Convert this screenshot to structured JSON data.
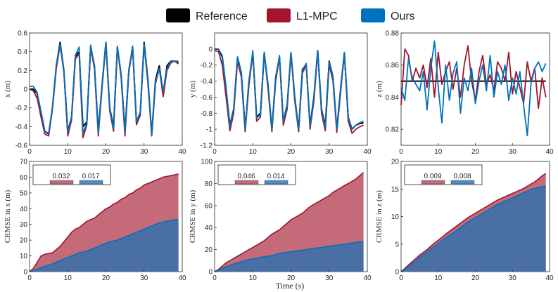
{
  "legend": {
    "items": [
      {
        "label": "Reference",
        "color": "#000000"
      },
      {
        "label": "L1-MPC",
        "color": "#a2142f"
      },
      {
        "label": "Ours",
        "color": "#0072bd"
      }
    ]
  },
  "shared_xlabel": "Time (s)",
  "chart_data": [
    {
      "type": "line",
      "panel": "top-left",
      "ylabel": "x (m)",
      "xlim": [
        0,
        40
      ],
      "ylim": [
        -0.6,
        0.6
      ],
      "xticks": [
        0,
        10,
        20,
        30,
        40
      ],
      "yticks": [
        -0.6,
        -0.4,
        -0.2,
        0,
        0.2,
        0.4,
        0.6
      ],
      "ytick_labels": [
        "-0.6",
        "-0.4",
        "-0.2",
        "0",
        "0.2",
        "0.4",
        "0.6"
      ],
      "x": [
        0,
        1,
        2,
        3,
        4,
        5,
        6,
        7,
        8,
        9,
        10,
        11,
        12,
        13,
        14,
        15,
        16,
        17,
        18,
        19,
        20,
        21,
        22,
        23,
        24,
        25,
        26,
        27,
        28,
        29,
        30,
        31,
        32,
        33,
        34,
        35,
        36,
        37,
        38,
        39
      ],
      "series": [
        {
          "name": "Reference",
          "color": "#000000",
          "values": [
            0,
            0,
            -0.05,
            -0.25,
            -0.45,
            -0.48,
            -0.2,
            0.25,
            0.5,
            0.2,
            -0.45,
            -0.3,
            0.35,
            0.4,
            -0.4,
            -0.35,
            0.45,
            0.25,
            -0.45,
            0.05,
            0.5,
            -0.2,
            -0.4,
            0.45,
            0.15,
            -0.45,
            0.2,
            0.45,
            -0.35,
            -0.25,
            0.5,
            0.1,
            -0.48,
            0.1,
            0.25,
            -0.05,
            0.25,
            0.3,
            0.3,
            0.28
          ]
        },
        {
          "name": "L1-MPC",
          "color": "#a2142f",
          "values": [
            0,
            -0.02,
            -0.1,
            -0.3,
            -0.48,
            -0.5,
            -0.22,
            0.22,
            0.47,
            0.18,
            -0.5,
            -0.33,
            0.32,
            0.38,
            -0.52,
            -0.38,
            0.44,
            0.22,
            -0.5,
            0.02,
            0.48,
            -0.23,
            -0.45,
            0.44,
            0.12,
            -0.5,
            0.18,
            0.44,
            -0.38,
            -0.28,
            0.47,
            0.06,
            -0.5,
            0.06,
            0.22,
            -0.08,
            0.2,
            0.28,
            0.3,
            0.27
          ]
        },
        {
          "name": "Ours",
          "color": "#0072bd",
          "values": [
            0.03,
            0.03,
            -0.04,
            -0.24,
            -0.45,
            -0.47,
            -0.2,
            0.25,
            0.48,
            0.2,
            -0.46,
            -0.3,
            0.36,
            0.45,
            -0.47,
            -0.36,
            0.47,
            0.25,
            -0.47,
            0.05,
            0.5,
            -0.2,
            -0.42,
            0.46,
            0.15,
            -0.46,
            0.2,
            0.46,
            -0.35,
            -0.25,
            0.48,
            0.08,
            -0.48,
            0.08,
            0.22,
            -0.02,
            0.22,
            0.3,
            0.3,
            0.3
          ]
        }
      ]
    },
    {
      "type": "line",
      "panel": "top-middle",
      "ylabel": "y (m)",
      "xlim": [
        0,
        40
      ],
      "ylim": [
        -1.2,
        0.2
      ],
      "xticks": [
        0,
        10,
        20,
        30,
        40
      ],
      "yticks": [
        -1.2,
        -1,
        -0.8,
        -0.6,
        -0.4,
        -0.2,
        0
      ],
      "ytick_labels": [
        "-1.2",
        "-1",
        "-0.8",
        "-0.6",
        "-0.4",
        "-0.2",
        "0"
      ],
      "x": [
        0,
        1,
        2,
        3,
        4,
        5,
        6,
        7,
        8,
        9,
        10,
        11,
        12,
        13,
        14,
        15,
        16,
        17,
        18,
        19,
        20,
        21,
        22,
        23,
        24,
        25,
        26,
        27,
        28,
        29,
        30,
        31,
        32,
        33,
        34,
        35,
        36,
        37,
        38,
        39
      ],
      "series": [
        {
          "name": "Reference",
          "color": "#000000",
          "values": [
            0,
            0,
            -0.1,
            -0.5,
            -0.95,
            -0.75,
            -0.1,
            -0.3,
            -1.0,
            -0.4,
            -0.05,
            -0.85,
            -0.8,
            -0.05,
            -0.45,
            -1.0,
            -0.35,
            -0.1,
            -0.9,
            -0.7,
            -0.05,
            -0.6,
            -1.0,
            -0.25,
            -0.2,
            -0.95,
            -0.6,
            -0.02,
            -0.75,
            -0.95,
            -0.15,
            -0.35,
            -1.0,
            -0.5,
            -0.05,
            -0.85,
            -1.0,
            -0.95,
            -0.93,
            -0.92
          ]
        },
        {
          "name": "L1-MPC",
          "color": "#a2142f",
          "values": [
            -0.02,
            -0.03,
            -0.2,
            -0.6,
            -1.02,
            -0.8,
            -0.15,
            -0.35,
            -1.03,
            -0.45,
            -0.05,
            -0.9,
            -0.85,
            -0.05,
            -0.5,
            -1.03,
            -0.4,
            -0.1,
            -0.95,
            -0.75,
            -0.05,
            -0.65,
            -1.03,
            -0.3,
            -0.2,
            -1.0,
            -0.65,
            -0.03,
            -0.8,
            -1.02,
            -0.2,
            -0.4,
            -1.04,
            -0.55,
            -0.05,
            -0.9,
            -1.05,
            -1.0,
            -0.97,
            -0.95
          ]
        },
        {
          "name": "Ours",
          "color": "#0072bd",
          "values": [
            0,
            0,
            -0.08,
            -0.48,
            -0.97,
            -0.76,
            -0.1,
            -0.3,
            -1.0,
            -0.4,
            -0.02,
            -0.86,
            -0.82,
            -0.04,
            -0.46,
            -1.0,
            -0.36,
            -0.08,
            -0.9,
            -0.72,
            -0.04,
            -0.6,
            -1.0,
            -0.26,
            -0.18,
            -0.96,
            -0.62,
            -0.02,
            -0.76,
            -0.97,
            -0.16,
            -0.36,
            -1.0,
            -0.5,
            -0.04,
            -0.86,
            -1.0,
            -0.95,
            -0.92,
            -0.9
          ]
        }
      ]
    },
    {
      "type": "line",
      "panel": "top-right",
      "ylabel": "z (m)",
      "xlim": [
        0,
        40
      ],
      "ylim": [
        0.81,
        0.88
      ],
      "xticks": [
        0,
        10,
        20,
        30,
        40
      ],
      "yticks": [
        0.82,
        0.84,
        0.86,
        0.88
      ],
      "ytick_labels": [
        "0.82",
        "0.84",
        "0.86",
        "0.88"
      ],
      "x": [
        0,
        1,
        2,
        3,
        4,
        5,
        6,
        7,
        8,
        9,
        10,
        11,
        12,
        13,
        14,
        15,
        16,
        17,
        18,
        19,
        20,
        21,
        22,
        23,
        24,
        25,
        26,
        27,
        28,
        29,
        30,
        31,
        32,
        33,
        34,
        35,
        36,
        37,
        38,
        39
      ],
      "series": [
        {
          "name": "Reference",
          "color": "#000000",
          "values": [
            0.85,
            0.85,
            0.85,
            0.85,
            0.85,
            0.85,
            0.85,
            0.85,
            0.85,
            0.85,
            0.85,
            0.85,
            0.85,
            0.85,
            0.85,
            0.85,
            0.85,
            0.85,
            0.85,
            0.85,
            0.85,
            0.85,
            0.85,
            0.85,
            0.85,
            0.85,
            0.85,
            0.85,
            0.85,
            0.85,
            0.85,
            0.85,
            0.85,
            0.85,
            0.85,
            0.85,
            0.85,
            0.85,
            0.85,
            0.85
          ]
        },
        {
          "name": "L1-MPC",
          "color": "#a2142f",
          "values": [
            0.835,
            0.87,
            0.866,
            0.85,
            0.858,
            0.852,
            0.86,
            0.846,
            0.864,
            0.84,
            0.868,
            0.848,
            0.856,
            0.862,
            0.845,
            0.858,
            0.84,
            0.86,
            0.872,
            0.85,
            0.838,
            0.856,
            0.866,
            0.848,
            0.854,
            0.844,
            0.862,
            0.858,
            0.85,
            0.868,
            0.842,
            0.856,
            0.846,
            0.836,
            0.862,
            0.85,
            0.858,
            0.833,
            0.852,
            0.84
          ]
        },
        {
          "name": "Ours",
          "color": "#0072bd",
          "values": [
            0.846,
            0.838,
            0.864,
            0.852,
            0.848,
            0.844,
            0.856,
            0.832,
            0.858,
            0.875,
            0.846,
            0.824,
            0.86,
            0.838,
            0.855,
            0.862,
            0.83,
            0.852,
            0.844,
            0.858,
            0.836,
            0.85,
            0.86,
            0.844,
            0.866,
            0.84,
            0.856,
            0.848,
            0.86,
            0.838,
            0.852,
            0.842,
            0.856,
            0.835,
            0.816,
            0.848,
            0.858,
            0.862,
            0.856,
            0.861
          ]
        }
      ]
    },
    {
      "type": "area",
      "panel": "bottom-left",
      "ylabel": "CRMSE in x (m)",
      "xlim": [
        0,
        40
      ],
      "ylim": [
        0,
        70
      ],
      "xticks": [
        0,
        10,
        20,
        30,
        40
      ],
      "yticks": [
        0,
        10,
        20,
        30,
        40,
        50,
        60,
        70
      ],
      "x": [
        0,
        1,
        2,
        3,
        4,
        5,
        6,
        7,
        8,
        9,
        10,
        11,
        12,
        13,
        14,
        15,
        16,
        17,
        18,
        19,
        20,
        21,
        22,
        23,
        24,
        25,
        26,
        27,
        28,
        29,
        30,
        31,
        32,
        33,
        34,
        35,
        36,
        37,
        38,
        39
      ],
      "series": [
        {
          "name": "L1-MPC",
          "color": "#c46a79",
          "line_color": "#a2142f",
          "values": [
            0,
            2,
            6,
            10,
            11,
            11.5,
            12,
            14,
            16,
            19,
            22,
            25,
            27,
            28,
            30,
            32,
            33,
            34,
            36,
            38,
            40,
            41,
            43,
            44,
            46,
            47,
            49,
            50,
            52,
            53,
            55,
            56,
            57,
            58,
            59,
            60,
            60.5,
            61,
            61.5,
            62
          ]
        },
        {
          "name": "Ours",
          "color": "#4a6fa5",
          "line_color": "#0072bd",
          "values": [
            0,
            0.5,
            1.5,
            2.5,
            3.5,
            4,
            5,
            6,
            7,
            8,
            9,
            10,
            11,
            12,
            12.5,
            13,
            14,
            15,
            16,
            17,
            18,
            19,
            19.5,
            20,
            21,
            22,
            23,
            24,
            25,
            26,
            27,
            28,
            29,
            30,
            31,
            31.5,
            32,
            32.5,
            33,
            33
          ]
        }
      ],
      "bars": [
        {
          "label": "0.032",
          "value": 0.032,
          "color": "#c46a79"
        },
        {
          "label": "0.017",
          "value": 0.017,
          "color": "#4a8fc9"
        }
      ]
    },
    {
      "type": "area",
      "panel": "bottom-middle",
      "ylabel": "CRMSE in y (m)",
      "xlim": [
        0,
        40
      ],
      "ylim": [
        0,
        100
      ],
      "xticks": [
        0,
        10,
        20,
        30,
        40
      ],
      "yticks": [
        0,
        20,
        40,
        60,
        80,
        100
      ],
      "x": [
        0,
        1,
        2,
        3,
        4,
        5,
        6,
        7,
        8,
        9,
        10,
        11,
        12,
        13,
        14,
        15,
        16,
        17,
        18,
        19,
        20,
        21,
        22,
        23,
        24,
        25,
        26,
        27,
        28,
        29,
        30,
        31,
        32,
        33,
        34,
        35,
        36,
        37,
        38,
        39
      ],
      "series": [
        {
          "name": "L1-MPC",
          "color": "#c46a79",
          "line_color": "#a2142f",
          "values": [
            0,
            2,
            5,
            8,
            10,
            12,
            14,
            16,
            18,
            20,
            22,
            24,
            26,
            28,
            31,
            34,
            36,
            38,
            41,
            44,
            47,
            49,
            51,
            53,
            56,
            59,
            61,
            63,
            65,
            67,
            69,
            72,
            74,
            76,
            78,
            80,
            82,
            84,
            87,
            90
          ]
        },
        {
          "name": "Ours",
          "color": "#4a6fa5",
          "line_color": "#0072bd",
          "values": [
            0,
            1,
            3,
            4.5,
            5.5,
            7,
            8,
            9,
            10,
            11,
            11.5,
            12,
            13,
            13.5,
            14,
            14.5,
            15.5,
            16.5,
            17,
            17.5,
            18,
            18.5,
            19,
            19.5,
            20,
            20.5,
            21,
            21.5,
            22,
            22.5,
            23,
            23.5,
            24,
            24.5,
            25,
            25.5,
            26,
            26.5,
            27,
            27
          ]
        }
      ],
      "bars": [
        {
          "label": "0.046",
          "value": 0.046,
          "color": "#c46a79"
        },
        {
          "label": "0.014",
          "value": 0.014,
          "color": "#4a8fc9"
        }
      ]
    },
    {
      "type": "area",
      "panel": "bottom-right",
      "ylabel": "CRMSE in z (m)",
      "xlim": [
        0,
        40
      ],
      "ylim": [
        0,
        20
      ],
      "xticks": [
        0,
        10,
        20,
        30,
        40
      ],
      "yticks": [
        0,
        5,
        10,
        15,
        20
      ],
      "x": [
        0,
        1,
        2,
        3,
        4,
        5,
        6,
        7,
        8,
        9,
        10,
        11,
        12,
        13,
        14,
        15,
        16,
        17,
        18,
        19,
        20,
        21,
        22,
        23,
        24,
        25,
        26,
        27,
        28,
        29,
        30,
        31,
        32,
        33,
        34,
        35,
        36,
        37,
        38,
        39
      ],
      "series": [
        {
          "name": "L1-MPC",
          "color": "#c46a79",
          "line_color": "#a2142f",
          "values": [
            0,
            0.6,
            1.2,
            1.8,
            2.4,
            3,
            3.5,
            4,
            4.6,
            5.2,
            5.7,
            6.2,
            6.8,
            7.3,
            7.8,
            8.3,
            8.8,
            9.3,
            9.8,
            10.2,
            10.6,
            11,
            11.4,
            11.8,
            12.2,
            12.6,
            13,
            13.3,
            13.6,
            13.9,
            14.2,
            14.5,
            14.8,
            15.1,
            15.5,
            15.9,
            16.3,
            16.8,
            17.4,
            17.8
          ]
        },
        {
          "name": "Ours",
          "color": "#4a6fa5",
          "line_color": "#0072bd",
          "values": [
            0,
            0.4,
            0.9,
            1.5,
            2,
            2.6,
            3.1,
            3.6,
            4.1,
            4.6,
            5.1,
            5.6,
            6.1,
            6.6,
            7,
            7.5,
            8,
            8.5,
            9,
            9.4,
            9.8,
            10.2,
            10.6,
            11,
            11.4,
            11.8,
            12.2,
            12.5,
            12.8,
            13.1,
            13.4,
            13.7,
            14,
            14.3,
            14.6,
            14.9,
            15.1,
            15.3,
            15.4,
            15.5
          ]
        }
      ],
      "bars": [
        {
          "label": "0.009",
          "value": 0.009,
          "color": "#c46a79"
        },
        {
          "label": "0.008",
          "value": 0.008,
          "color": "#4a8fc9"
        }
      ]
    }
  ]
}
